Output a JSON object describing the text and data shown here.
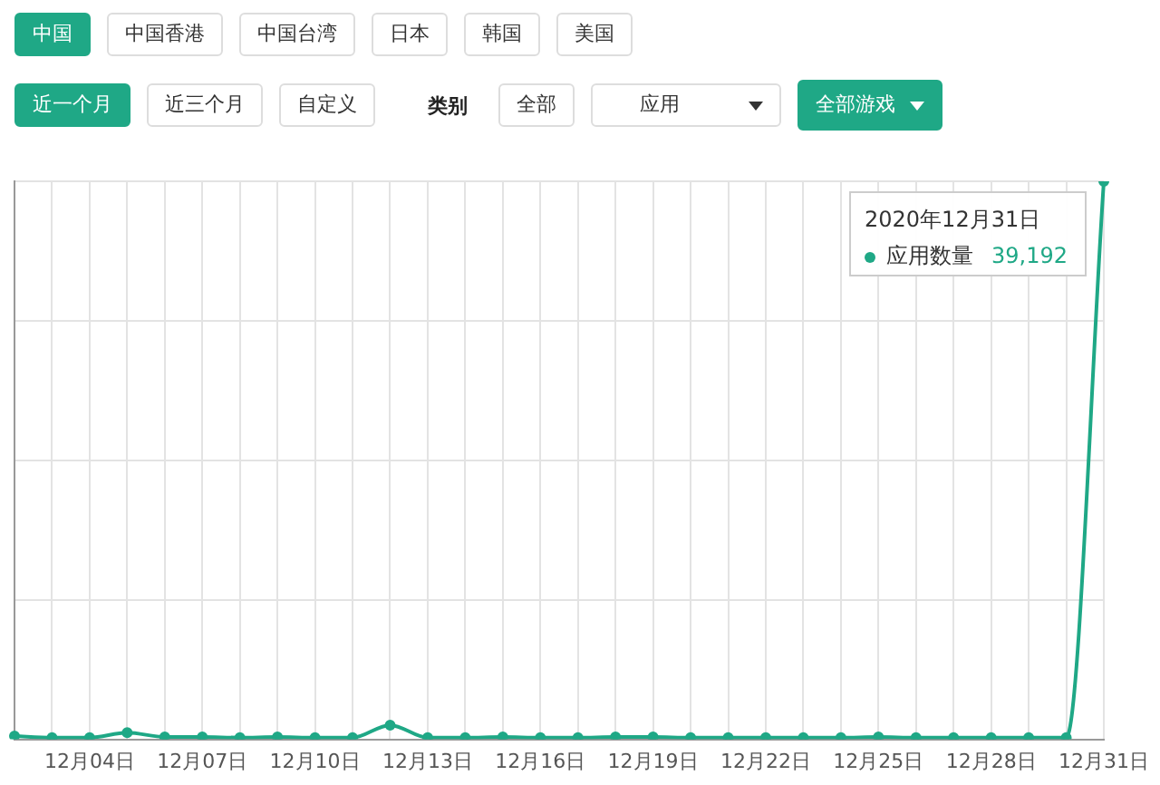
{
  "chart_data": {
    "type": "line",
    "ylim": [
      0,
      39192
    ],
    "tick_labels": "x",
    "categories": [
      null,
      null,
      "12月04日",
      null,
      null,
      "12月07日",
      null,
      null,
      "12月10日",
      null,
      null,
      "12月13日",
      null,
      null,
      "12月16日",
      null,
      null,
      "12月19日",
      null,
      null,
      "12月22日",
      null,
      null,
      "12月25日",
      null,
      null,
      "12月28日",
      null,
      null,
      "12月31日"
    ],
    "series": [
      {
        "name": "应用数量",
        "color": "#1fa886",
        "values": [
          230,
          120,
          120,
          470,
          160,
          160,
          120,
          160,
          120,
          120,
          1000,
          120,
          120,
          160,
          120,
          120,
          160,
          160,
          120,
          120,
          120,
          120,
          120,
          160,
          120,
          120,
          120,
          120,
          120,
          39192
        ],
        "value_labels": [
          null,
          null,
          null,
          null,
          null,
          null,
          null,
          null,
          null,
          null,
          null,
          null,
          null,
          null,
          null,
          null,
          null,
          null,
          null,
          null,
          null,
          null,
          null,
          null,
          null,
          null,
          null,
          null,
          null,
          "39,192"
        ]
      }
    ],
    "annotations": [
      "中国",
      "中国香港",
      "中国台湾",
      "日本",
      "韩国",
      "美国",
      "近一个月",
      "近三个月",
      "自定义",
      "类别",
      "全部",
      "应用",
      "全部游戏",
      "2020年12月31日"
    ],
    "grid": true,
    "legend": "top right",
    "marker": "circle",
    "line_style": "solid"
  }
}
